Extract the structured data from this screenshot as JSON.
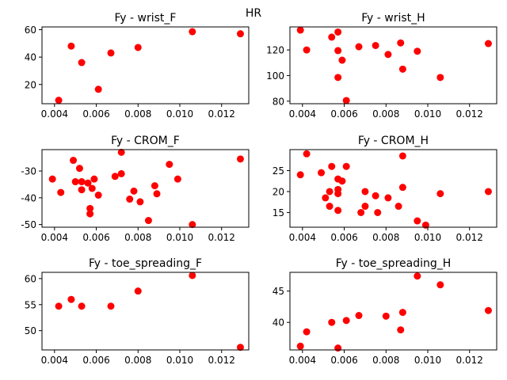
{
  "suptitle": "HR",
  "chart_data": [
    {
      "type": "scatter",
      "title": "Fy - wrist_F",
      "xlabel": "",
      "ylabel": "",
      "xlim": [
        0.0034,
        0.0133
      ],
      "ylim": [
        6,
        62
      ],
      "xticks": [
        0.004,
        0.006,
        0.008,
        0.01,
        0.012
      ],
      "yticks": [
        20,
        40,
        60
      ],
      "marker_color": "#ff0000",
      "points": [
        {
          "x": 0.0042,
          "y": 8.5
        },
        {
          "x": 0.0048,
          "y": 48
        },
        {
          "x": 0.0053,
          "y": 36
        },
        {
          "x": 0.0061,
          "y": 16.5
        },
        {
          "x": 0.0067,
          "y": 43
        },
        {
          "x": 0.008,
          "y": 47
        },
        {
          "x": 0.0106,
          "y": 58.5
        },
        {
          "x": 0.0129,
          "y": 57
        }
      ]
    },
    {
      "type": "scatter",
      "title": "Fy - wrist_H",
      "xlabel": "",
      "ylabel": "",
      "xlim": [
        0.0034,
        0.0133
      ],
      "ylim": [
        78,
        138
      ],
      "xticks": [
        0.004,
        0.006,
        0.008,
        0.01,
        0.012
      ],
      "yticks": [
        80,
        100,
        120
      ],
      "marker_color": "#ff0000",
      "points": [
        {
          "x": 0.0039,
          "y": 135.5
        },
        {
          "x": 0.0042,
          "y": 120
        },
        {
          "x": 0.0054,
          "y": 130
        },
        {
          "x": 0.0057,
          "y": 134
        },
        {
          "x": 0.0057,
          "y": 119.5
        },
        {
          "x": 0.0059,
          "y": 112
        },
        {
          "x": 0.0057,
          "y": 98.5
        },
        {
          "x": 0.0061,
          "y": 80.5
        },
        {
          "x": 0.0067,
          "y": 122.5
        },
        {
          "x": 0.0075,
          "y": 123.5
        },
        {
          "x": 0.0081,
          "y": 116.5
        },
        {
          "x": 0.0087,
          "y": 125.5
        },
        {
          "x": 0.0088,
          "y": 105
        },
        {
          "x": 0.0095,
          "y": 119
        },
        {
          "x": 0.0106,
          "y": 98.5
        },
        {
          "x": 0.0129,
          "y": 125
        }
      ]
    },
    {
      "type": "scatter",
      "title": "Fy - CROM_F",
      "xlabel": "",
      "ylabel": "",
      "xlim": [
        0.0034,
        0.0133
      ],
      "ylim": [
        -51,
        -22
      ],
      "xticks": [
        0.004,
        0.006,
        0.008,
        0.01,
        0.012
      ],
      "yticks": [
        -50,
        -40,
        -30
      ],
      "marker_color": "#ff0000",
      "points": [
        {
          "x": 0.0039,
          "y": -33
        },
        {
          "x": 0.0043,
          "y": -38
        },
        {
          "x": 0.0049,
          "y": -26
        },
        {
          "x": 0.005,
          "y": -34
        },
        {
          "x": 0.0052,
          "y": -29
        },
        {
          "x": 0.0053,
          "y": -34
        },
        {
          "x": 0.0053,
          "y": -37
        },
        {
          "x": 0.0056,
          "y": -34.5
        },
        {
          "x": 0.0058,
          "y": -36.5
        },
        {
          "x": 0.0057,
          "y": -44
        },
        {
          "x": 0.0057,
          "y": -46
        },
        {
          "x": 0.0059,
          "y": -33
        },
        {
          "x": 0.0061,
          "y": -39
        },
        {
          "x": 0.0069,
          "y": -32
        },
        {
          "x": 0.0072,
          "y": -31
        },
        {
          "x": 0.0072,
          "y": -23
        },
        {
          "x": 0.0076,
          "y": -40.5
        },
        {
          "x": 0.0078,
          "y": -37.5
        },
        {
          "x": 0.0081,
          "y": -41.5
        },
        {
          "x": 0.0085,
          "y": -48.5
        },
        {
          "x": 0.0088,
          "y": -35.5
        },
        {
          "x": 0.0089,
          "y": -38.5
        },
        {
          "x": 0.0095,
          "y": -27.5
        },
        {
          "x": 0.0099,
          "y": -33
        },
        {
          "x": 0.0106,
          "y": -50
        },
        {
          "x": 0.0129,
          "y": -25.5
        }
      ]
    },
    {
      "type": "scatter",
      "title": "Fy - CROM_H",
      "xlabel": "",
      "ylabel": "",
      "xlim": [
        0.0034,
        0.0133
      ],
      "ylim": [
        11.5,
        30
      ],
      "xticks": [
        0.004,
        0.006,
        0.008,
        0.01,
        0.012
      ],
      "yticks": [
        15,
        20,
        25
      ],
      "marker_color": "#ff0000",
      "points": [
        {
          "x": 0.0039,
          "y": 24
        },
        {
          "x": 0.0042,
          "y": 29
        },
        {
          "x": 0.0049,
          "y": 24.5
        },
        {
          "x": 0.0051,
          "y": 18.5
        },
        {
          "x": 0.0053,
          "y": 20
        },
        {
          "x": 0.0053,
          "y": 16.5
        },
        {
          "x": 0.0054,
          "y": 26
        },
        {
          "x": 0.0057,
          "y": 23
        },
        {
          "x": 0.0057,
          "y": 20.5
        },
        {
          "x": 0.0057,
          "y": 19.5
        },
        {
          "x": 0.0057,
          "y": 15.5
        },
        {
          "x": 0.0059,
          "y": 22.5
        },
        {
          "x": 0.0061,
          "y": 26
        },
        {
          "x": 0.0068,
          "y": 15
        },
        {
          "x": 0.007,
          "y": 20
        },
        {
          "x": 0.007,
          "y": 16.5
        },
        {
          "x": 0.0075,
          "y": 19
        },
        {
          "x": 0.0076,
          "y": 15
        },
        {
          "x": 0.0081,
          "y": 18.5
        },
        {
          "x": 0.0086,
          "y": 16.5
        },
        {
          "x": 0.0088,
          "y": 21
        },
        {
          "x": 0.0088,
          "y": 28.5
        },
        {
          "x": 0.0095,
          "y": 13
        },
        {
          "x": 0.0099,
          "y": 12
        },
        {
          "x": 0.0106,
          "y": 19.5
        },
        {
          "x": 0.0129,
          "y": 20
        }
      ]
    },
    {
      "type": "scatter",
      "title": "Fy - toe_spreading_F",
      "xlabel": "",
      "ylabel": "",
      "xlim": [
        0.0034,
        0.0133
      ],
      "ylim": [
        46.3,
        61.2
      ],
      "xticks": [
        0.004,
        0.006,
        0.008,
        0.01,
        0.012
      ],
      "yticks": [
        50,
        55,
        60
      ],
      "marker_color": "#ff0000",
      "points": [
        {
          "x": 0.0042,
          "y": 54.7
        },
        {
          "x": 0.0048,
          "y": 56
        },
        {
          "x": 0.0053,
          "y": 54.7
        },
        {
          "x": 0.0067,
          "y": 54.7
        },
        {
          "x": 0.008,
          "y": 57.6
        },
        {
          "x": 0.0106,
          "y": 60.6
        },
        {
          "x": 0.0129,
          "y": 46.8
        }
      ]
    },
    {
      "type": "scatter",
      "title": "Fy - toe_spreading_H",
      "xlabel": "",
      "ylabel": "",
      "xlim": [
        0.0034,
        0.0133
      ],
      "ylim": [
        35.6,
        48
      ],
      "xticks": [
        0.004,
        0.006,
        0.008,
        0.01,
        0.012
      ],
      "yticks": [
        40,
        45
      ],
      "marker_color": "#ff0000",
      "points": [
        {
          "x": 0.0039,
          "y": 36.2
        },
        {
          "x": 0.0042,
          "y": 38.5
        },
        {
          "x": 0.0054,
          "y": 40
        },
        {
          "x": 0.0057,
          "y": 35.9
        },
        {
          "x": 0.0061,
          "y": 40.3
        },
        {
          "x": 0.0067,
          "y": 41.1
        },
        {
          "x": 0.008,
          "y": 41
        },
        {
          "x": 0.0088,
          "y": 41.6
        },
        {
          "x": 0.0087,
          "y": 38.8
        },
        {
          "x": 0.0095,
          "y": 47.4
        },
        {
          "x": 0.0106,
          "y": 46
        },
        {
          "x": 0.0129,
          "y": 41.9
        }
      ]
    }
  ]
}
